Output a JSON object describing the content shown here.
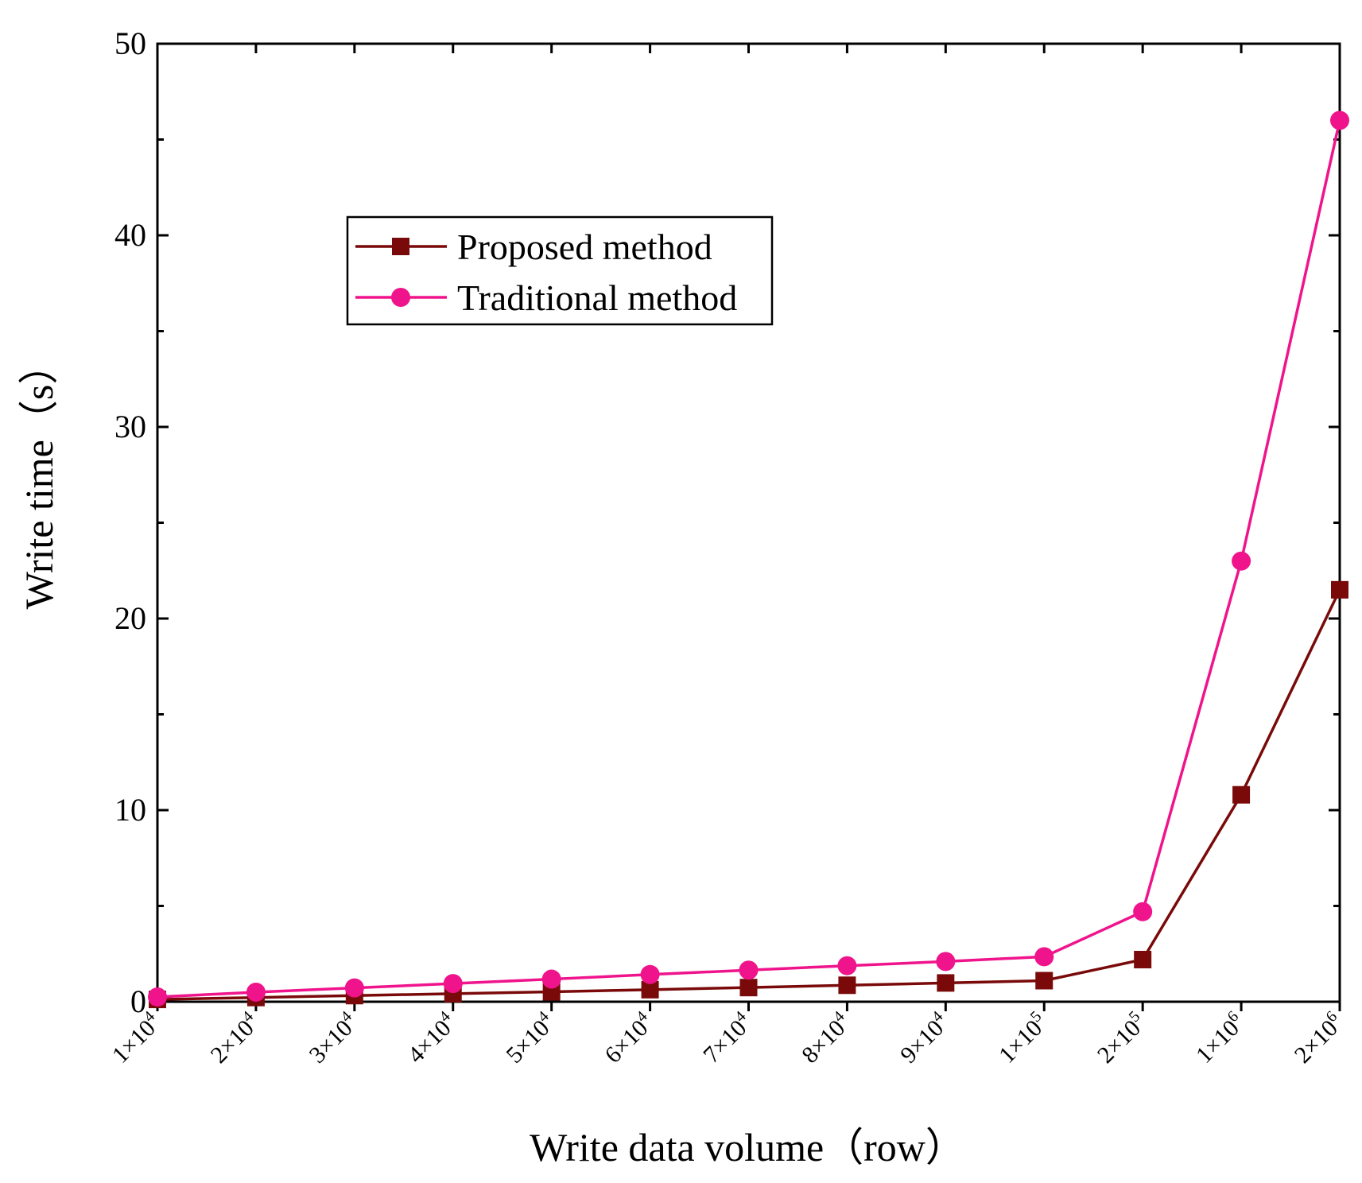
{
  "chart_data": {
    "type": "line",
    "title": "",
    "xlabel": "Write data volume（row）",
    "ylabel": "Write time（s）",
    "ylim": [
      0,
      50
    ],
    "yticks": [
      0,
      10,
      20,
      30,
      40,
      50
    ],
    "categories": [
      {
        "base": "1×10",
        "exp": "4"
      },
      {
        "base": "2×10",
        "exp": "4"
      },
      {
        "base": "3×10",
        "exp": "4"
      },
      {
        "base": "4×10",
        "exp": "4"
      },
      {
        "base": "5×10",
        "exp": "4"
      },
      {
        "base": "6×10",
        "exp": "4"
      },
      {
        "base": "7×10",
        "exp": "4"
      },
      {
        "base": "8×10",
        "exp": "4"
      },
      {
        "base": "9×10",
        "exp": "4"
      },
      {
        "base": "1×10",
        "exp": "5"
      },
      {
        "base": "2×10",
        "exp": "5"
      },
      {
        "base": "1×10",
        "exp": "6"
      },
      {
        "base": "2×10",
        "exp": "6"
      }
    ],
    "series": [
      {
        "name": "Proposed method",
        "marker": "square",
        "color": "#7a0a0a",
        "values": [
          0.12,
          0.22,
          0.32,
          0.42,
          0.52,
          0.63,
          0.74,
          0.86,
          0.98,
          1.1,
          2.2,
          10.8,
          21.5
        ]
      },
      {
        "name": "Traditional method",
        "marker": "circle",
        "color": "#f0148c",
        "values": [
          0.25,
          0.5,
          0.72,
          0.95,
          1.18,
          1.42,
          1.65,
          1.88,
          2.1,
          2.35,
          4.7,
          23.0,
          46.0
        ]
      }
    ],
    "legend_position": "upper-left-center",
    "grid": false
  }
}
